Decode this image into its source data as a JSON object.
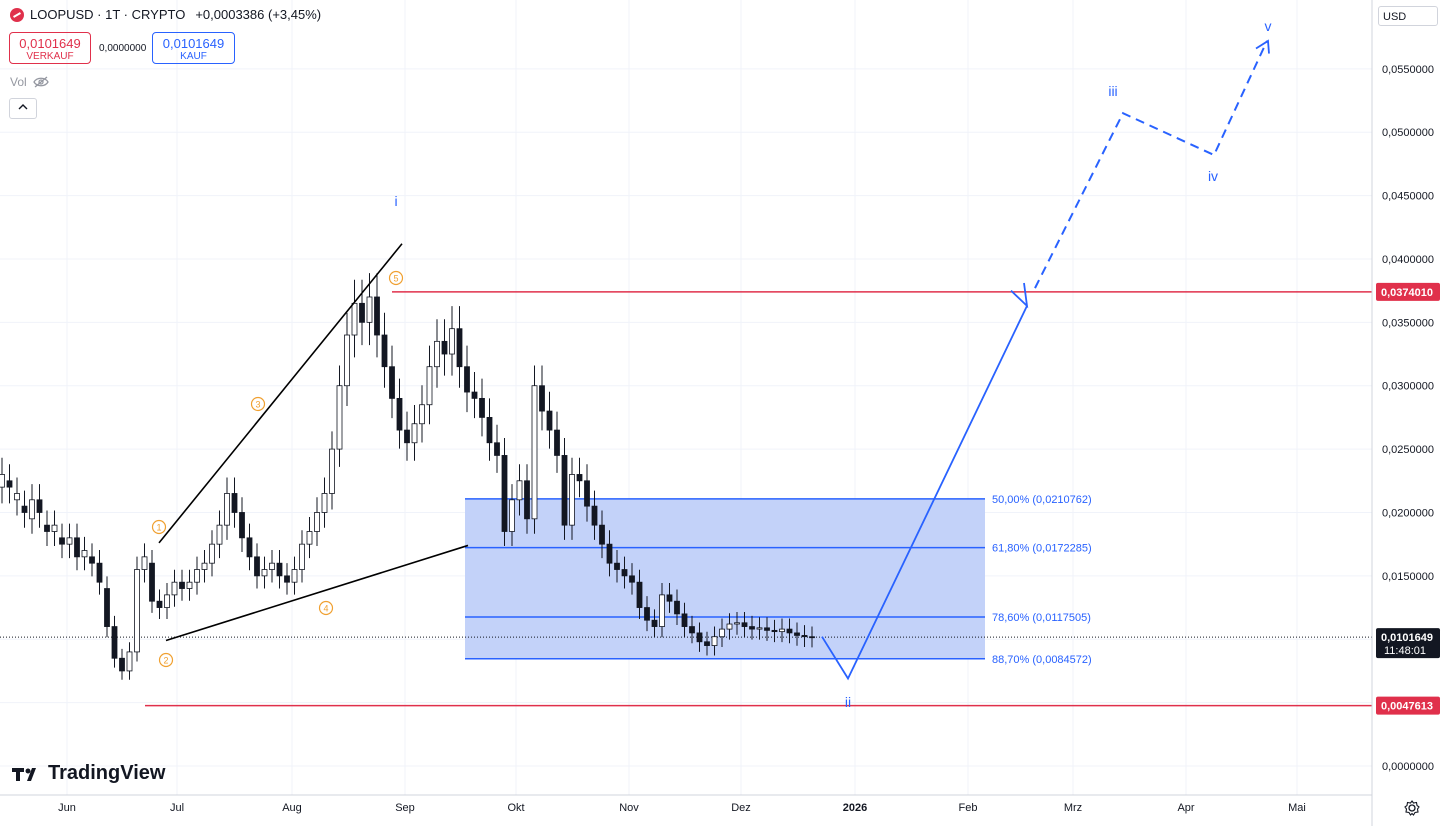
{
  "header": {
    "symbol": "LOOPUSD · 1T · CRYPTO",
    "change": "+0,0003386 (+3,45%)",
    "sell_price": "0,0101649",
    "sell_label": "VERKAUF",
    "spread": "0,0000000",
    "buy_price": "0,0101649",
    "buy_label": "KAUF",
    "vol_label": "Vol"
  },
  "currency": "USD",
  "branding": {
    "logo_text": "TradingView"
  },
  "colors": {
    "up": "#131722",
    "accent_blue": "#2962ff",
    "red": "#e0304b",
    "zone_fill": "#c0d0f9"
  },
  "chart_data": {
    "type": "candlestick",
    "x_labels": [
      "Jun",
      "Jul",
      "Aug",
      "Sep",
      "Okt",
      "Nov",
      "Dez",
      "2026",
      "Feb",
      "Mrz",
      "Apr",
      "Mai"
    ],
    "y_ticks": [
      "0,0550000",
      "0,0500000",
      "0,0450000",
      "0,0400000",
      "0,0350000",
      "0,0300000",
      "0,0250000",
      "0,0200000",
      "0,0150000",
      "0,0000000"
    ],
    "y_tick_values": [
      0.055,
      0.05,
      0.045,
      0.04,
      0.035,
      0.03,
      0.025,
      0.02,
      0.015,
      0.0
    ],
    "ylim": [
      -0.0005,
      0.0615
    ],
    "current_price": {
      "value": 0.0101649,
      "label": "0,0101649",
      "countdown": "11:48:01"
    },
    "horizontal_levels": [
      {
        "value": 0.037401,
        "label": "0,0374010",
        "color": "#e0304b"
      },
      {
        "value": 0.0047613,
        "label": "0,0047613",
        "color": "#e0304b"
      }
    ],
    "fib_levels": [
      {
        "label": "50,00% (0,0210762)",
        "value": 0.0210762
      },
      {
        "label": "61,80% (0,0172285)",
        "value": 0.0172285
      },
      {
        "label": "78,60% (0,0117505)",
        "value": 0.0117505
      },
      {
        "label": "88,70% (0,0084572)",
        "value": 0.0084572
      }
    ],
    "wave_labels_orange": [
      "1",
      "2",
      "3",
      "4",
      "5"
    ],
    "wave_labels_blue": [
      "i",
      "ii",
      "iii",
      "iv",
      "v"
    ],
    "price_path": [
      [
        0.022,
        0.023
      ],
      [
        0.0225,
        0.022
      ],
      [
        0.021,
        0.0215
      ],
      [
        0.0205,
        0.02
      ],
      [
        0.0195,
        0.021
      ],
      [
        0.021,
        0.02
      ],
      [
        0.019,
        0.0185
      ],
      [
        0.0185,
        0.019
      ],
      [
        0.018,
        0.0175
      ],
      [
        0.0175,
        0.018
      ],
      [
        0.018,
        0.0165
      ],
      [
        0.0165,
        0.017
      ],
      [
        0.0165,
        0.016
      ],
      [
        0.016,
        0.0145
      ],
      [
        0.014,
        0.011
      ],
      [
        0.011,
        0.0085
      ],
      [
        0.0085,
        0.0075
      ],
      [
        0.0075,
        0.009
      ],
      [
        0.009,
        0.0155
      ],
      [
        0.0155,
        0.0165
      ],
      [
        0.016,
        0.013
      ],
      [
        0.013,
        0.0125
      ],
      [
        0.0125,
        0.0135
      ],
      [
        0.0135,
        0.0145
      ],
      [
        0.0145,
        0.014
      ],
      [
        0.014,
        0.0145
      ],
      [
        0.0145,
        0.0155
      ],
      [
        0.0155,
        0.016
      ],
      [
        0.016,
        0.0175
      ],
      [
        0.0175,
        0.019
      ],
      [
        0.019,
        0.0215
      ],
      [
        0.0215,
        0.02
      ],
      [
        0.02,
        0.018
      ],
      [
        0.018,
        0.0165
      ],
      [
        0.0165,
        0.015
      ],
      [
        0.015,
        0.0155
      ],
      [
        0.0155,
        0.016
      ],
      [
        0.016,
        0.015
      ],
      [
        0.015,
        0.0145
      ],
      [
        0.0145,
        0.0155
      ],
      [
        0.0155,
        0.0175
      ],
      [
        0.0175,
        0.0185
      ],
      [
        0.0185,
        0.02
      ],
      [
        0.02,
        0.0215
      ],
      [
        0.0215,
        0.025
      ],
      [
        0.025,
        0.03
      ],
      [
        0.03,
        0.034
      ],
      [
        0.034,
        0.0365
      ],
      [
        0.0365,
        0.035
      ],
      [
        0.035,
        0.037
      ],
      [
        0.037,
        0.034
      ],
      [
        0.034,
        0.0315
      ],
      [
        0.0315,
        0.029
      ],
      [
        0.029,
        0.0265
      ],
      [
        0.0265,
        0.0255
      ],
      [
        0.0255,
        0.027
      ],
      [
        0.027,
        0.0285
      ],
      [
        0.0285,
        0.0315
      ],
      [
        0.0315,
        0.0335
      ],
      [
        0.0335,
        0.0325
      ],
      [
        0.0325,
        0.0345
      ],
      [
        0.0345,
        0.0315
      ],
      [
        0.0315,
        0.0295
      ],
      [
        0.0295,
        0.029
      ],
      [
        0.029,
        0.0275
      ],
      [
        0.0275,
        0.0255
      ],
      [
        0.0255,
        0.0245
      ],
      [
        0.0245,
        0.0185
      ],
      [
        0.0185,
        0.021
      ],
      [
        0.021,
        0.0225
      ],
      [
        0.0225,
        0.0195
      ],
      [
        0.0195,
        0.03
      ],
      [
        0.03,
        0.028
      ],
      [
        0.028,
        0.0265
      ],
      [
        0.0265,
        0.0245
      ],
      [
        0.0245,
        0.019
      ],
      [
        0.019,
        0.023
      ],
      [
        0.023,
        0.0225
      ],
      [
        0.0225,
        0.0205
      ],
      [
        0.0205,
        0.019
      ],
      [
        0.019,
        0.0175
      ],
      [
        0.0175,
        0.016
      ],
      [
        0.016,
        0.0155
      ],
      [
        0.0155,
        0.015
      ],
      [
        0.015,
        0.0145
      ],
      [
        0.0145,
        0.0125
      ],
      [
        0.0125,
        0.0115
      ],
      [
        0.0115,
        0.011
      ],
      [
        0.011,
        0.0135
      ],
      [
        0.0135,
        0.013
      ],
      [
        0.013,
        0.012
      ],
      [
        0.012,
        0.011
      ],
      [
        0.011,
        0.0105
      ],
      [
        0.0105,
        0.0098
      ],
      [
        0.0098,
        0.0095
      ],
      [
        0.0095,
        0.0102
      ],
      [
        0.0102,
        0.0108
      ],
      [
        0.0108,
        0.0112
      ],
      [
        0.0112,
        0.0113
      ],
      [
        0.0113,
        0.011
      ],
      [
        0.011,
        0.0108
      ],
      [
        0.0108,
        0.0109
      ],
      [
        0.0109,
        0.0107
      ],
      [
        0.0107,
        0.0106
      ],
      [
        0.0106,
        0.0108
      ],
      [
        0.0108,
        0.0105
      ],
      [
        0.0105,
        0.0103
      ],
      [
        0.0103,
        0.0102
      ],
      [
        0.0102,
        0.0101649
      ]
    ]
  }
}
